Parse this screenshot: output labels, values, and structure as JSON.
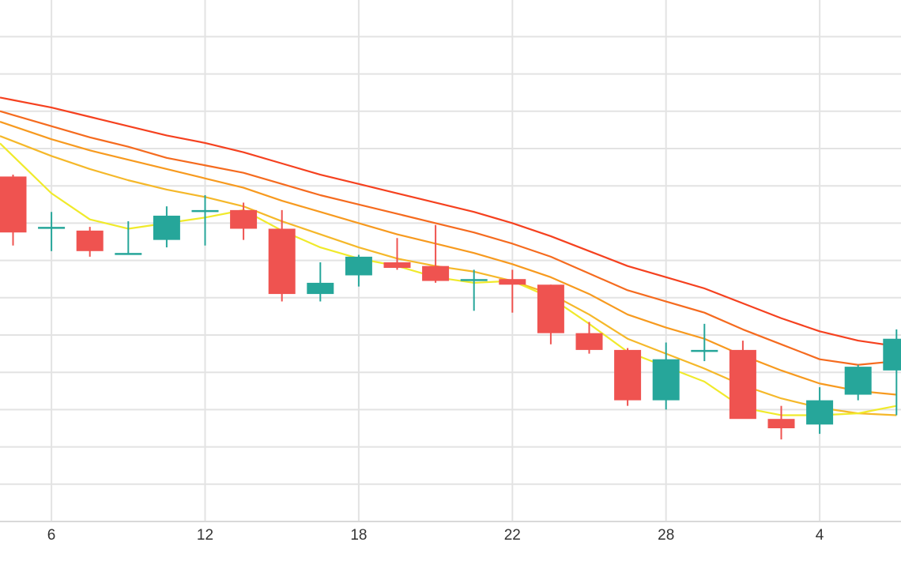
{
  "chart_data": {
    "type": "candlestick",
    "x_ticks": [
      {
        "label": "6",
        "x": 1
      },
      {
        "label": "12",
        "x": 5
      },
      {
        "label": "18",
        "x": 9
      },
      {
        "label": "22",
        "x": 13
      },
      {
        "label": "28",
        "x": 17
      },
      {
        "label": "4",
        "x": 21
      }
    ],
    "y_range": [
      0,
      14
    ],
    "grid": true,
    "colors": {
      "up": "#26a69a",
      "down": "#ef5350",
      "grid": "#e3e3e3",
      "axis": "#d9d9d9"
    },
    "candles": [
      {
        "x": 0,
        "open": 9.25,
        "high": 9.3,
        "low": 7.4,
        "close": 7.75
      },
      {
        "x": 1,
        "open": 7.9,
        "high": 8.3,
        "low": 7.25,
        "close": 7.9
      },
      {
        "x": 2,
        "open": 7.8,
        "high": 7.9,
        "low": 7.1,
        "close": 7.25
      },
      {
        "x": 3,
        "open": 7.2,
        "high": 8.05,
        "low": 7.15,
        "close": 7.2
      },
      {
        "x": 4,
        "open": 7.55,
        "high": 8.45,
        "low": 7.35,
        "close": 8.2
      },
      {
        "x": 5,
        "open": 8.35,
        "high": 8.75,
        "low": 7.4,
        "close": 8.35
      },
      {
        "x": 6,
        "open": 8.35,
        "high": 8.55,
        "low": 7.55,
        "close": 7.85
      },
      {
        "x": 7,
        "open": 7.85,
        "high": 8.35,
        "low": 5.9,
        "close": 6.1
      },
      {
        "x": 8,
        "open": 6.1,
        "high": 6.95,
        "low": 5.9,
        "close": 6.4
      },
      {
        "x": 9,
        "open": 6.6,
        "high": 7.15,
        "low": 6.3,
        "close": 7.1
      },
      {
        "x": 10,
        "open": 6.95,
        "high": 7.6,
        "low": 6.75,
        "close": 6.8
      },
      {
        "x": 11,
        "open": 6.85,
        "high": 7.95,
        "low": 6.4,
        "close": 6.45
      },
      {
        "x": 12,
        "open": 6.5,
        "high": 6.75,
        "low": 5.65,
        "close": 6.5
      },
      {
        "x": 13,
        "open": 6.5,
        "high": 6.75,
        "low": 5.6,
        "close": 6.35
      },
      {
        "x": 14,
        "open": 6.35,
        "high": 6.35,
        "low": 4.75,
        "close": 5.05
      },
      {
        "x": 15,
        "open": 5.05,
        "high": 5.35,
        "low": 4.5,
        "close": 4.6
      },
      {
        "x": 16,
        "open": 4.6,
        "high": 4.65,
        "low": 3.1,
        "close": 3.25
      },
      {
        "x": 17,
        "open": 3.25,
        "high": 4.8,
        "low": 3.0,
        "close": 4.35
      },
      {
        "x": 18,
        "open": 4.55,
        "high": 5.3,
        "low": 4.3,
        "close": 4.6
      },
      {
        "x": 19,
        "open": 4.6,
        "high": 4.85,
        "low": 2.85,
        "close": 2.75
      },
      {
        "x": 20,
        "open": 2.75,
        "high": 3.1,
        "low": 2.2,
        "close": 2.5
      },
      {
        "x": 21,
        "open": 2.6,
        "high": 3.6,
        "low": 2.35,
        "close": 3.25
      },
      {
        "x": 22,
        "open": 3.4,
        "high": 4.2,
        "low": 3.25,
        "close": 4.15
      },
      {
        "x": 23,
        "open": 4.05,
        "high": 5.15,
        "low": 2.85,
        "close": 4.9
      }
    ],
    "moving_averages": [
      {
        "color": "#f5411f",
        "values": [
          11.3,
          11.1,
          10.85,
          10.6,
          10.35,
          10.15,
          9.9,
          9.6,
          9.3,
          9.05,
          8.8,
          8.55,
          8.3,
          8.0,
          7.65,
          7.25,
          6.85,
          6.55,
          6.25,
          5.85,
          5.45,
          5.1,
          4.85,
          4.7
        ]
      },
      {
        "color": "#f56b1f",
        "values": [
          10.9,
          10.6,
          10.3,
          10.05,
          9.75,
          9.55,
          9.35,
          9.05,
          8.75,
          8.5,
          8.25,
          8.0,
          7.75,
          7.45,
          7.1,
          6.65,
          6.2,
          5.9,
          5.6,
          5.15,
          4.75,
          4.35,
          4.2,
          4.3
        ]
      },
      {
        "color": "#f79a1f",
        "values": [
          10.6,
          10.25,
          9.95,
          9.7,
          9.45,
          9.2,
          8.95,
          8.6,
          8.3,
          8.0,
          7.7,
          7.45,
          7.2,
          6.9,
          6.55,
          6.1,
          5.55,
          5.2,
          4.9,
          4.45,
          4.05,
          3.7,
          3.5,
          3.4
        ]
      },
      {
        "color": "#f5b82a",
        "values": [
          10.2,
          9.8,
          9.45,
          9.15,
          8.9,
          8.7,
          8.45,
          8.05,
          7.7,
          7.35,
          7.05,
          6.85,
          6.7,
          6.45,
          6.1,
          5.55,
          4.9,
          4.5,
          4.1,
          3.65,
          3.3,
          3.05,
          2.9,
          2.85
        ]
      },
      {
        "color": "#f0ea2b",
        "values": [
          9.8,
          8.8,
          8.1,
          7.85,
          8.0,
          8.15,
          8.35,
          7.8,
          7.35,
          7.05,
          6.85,
          6.55,
          6.4,
          6.45,
          6.0,
          5.3,
          4.55,
          4.15,
          3.75,
          3.05,
          2.85,
          2.85,
          2.9,
          3.1
        ]
      }
    ]
  }
}
